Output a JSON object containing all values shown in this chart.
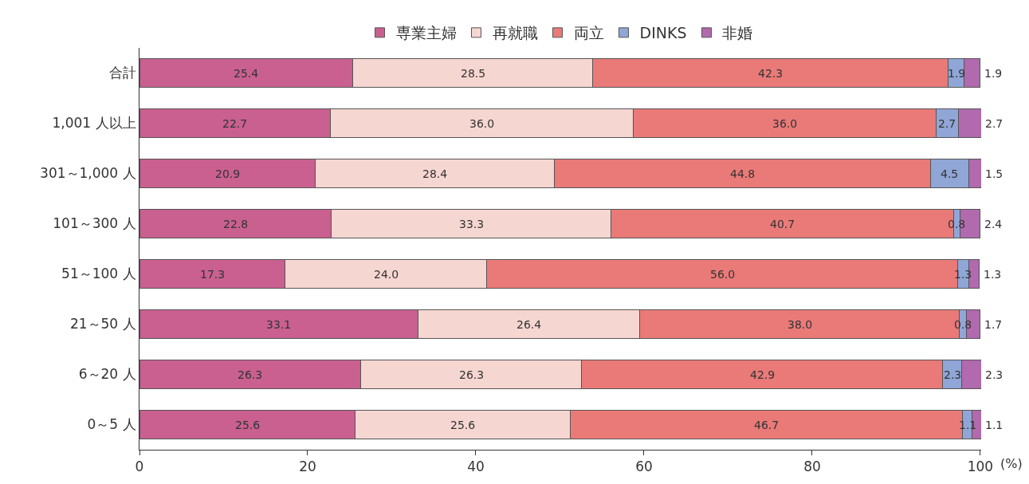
{
  "chart_data": {
    "type": "bar",
    "orientation": "horizontal",
    "stacked": true,
    "legend": "top",
    "xlabel": "(%)",
    "tick_labels": "x",
    "categories": [
      "合計",
      "1,001 人以上",
      "301～1,000 人",
      "101～300 人",
      "51～100 人",
      "21～50 人",
      "6～20 人",
      "0～5 人"
    ],
    "xlim": [
      0,
      100.1
    ],
    "xticks": [
      0,
      20,
      40,
      60,
      80,
      100
    ],
    "series": [
      {
        "name": "専業主婦",
        "color": "#c9608f",
        "values": [
          25.4,
          22.7,
          20.9,
          22.8,
          17.3,
          33.1,
          26.3,
          25.6
        ],
        "value_labels": [
          "25.4",
          "22.7",
          "20.9",
          "22.8",
          "17.3",
          "33.1",
          "26.3",
          "25.6"
        ]
      },
      {
        "name": "再就職",
        "color": "#f6d6d1",
        "values": [
          28.5,
          36.0,
          28.4,
          33.3,
          24.0,
          26.4,
          26.3,
          25.6
        ],
        "value_labels": [
          "28.5",
          "36.0",
          "28.4",
          "33.3",
          "24.0",
          "26.4",
          "26.3",
          "25.6"
        ]
      },
      {
        "name": "両立",
        "color": "#e97a78",
        "values": [
          42.3,
          36.0,
          44.8,
          40.7,
          56.0,
          38.0,
          42.9,
          46.7
        ],
        "value_labels": [
          "42.3",
          "36.0",
          "44.8",
          "40.7",
          "56.0",
          "38.0",
          "42.9",
          "46.7"
        ]
      },
      {
        "name": "DINKS",
        "color": "#8fa6d6",
        "values": [
          1.9,
          2.7,
          4.5,
          0.8,
          1.3,
          0.8,
          2.3,
          1.1
        ],
        "value_labels": [
          "1.9",
          "2.7",
          "4.5",
          "0.8",
          "1.3",
          "0.8",
          "2.3",
          "1.1"
        ]
      },
      {
        "name": "非婚",
        "color": "#b06aad",
        "values": [
          1.9,
          2.7,
          1.5,
          2.4,
          1.3,
          1.7,
          2.3,
          1.1
        ],
        "value_labels": [
          "1.9",
          "2.7",
          "1.5",
          "2.4",
          "1.3",
          "1.7",
          "2.3",
          "1.1"
        ]
      }
    ]
  }
}
